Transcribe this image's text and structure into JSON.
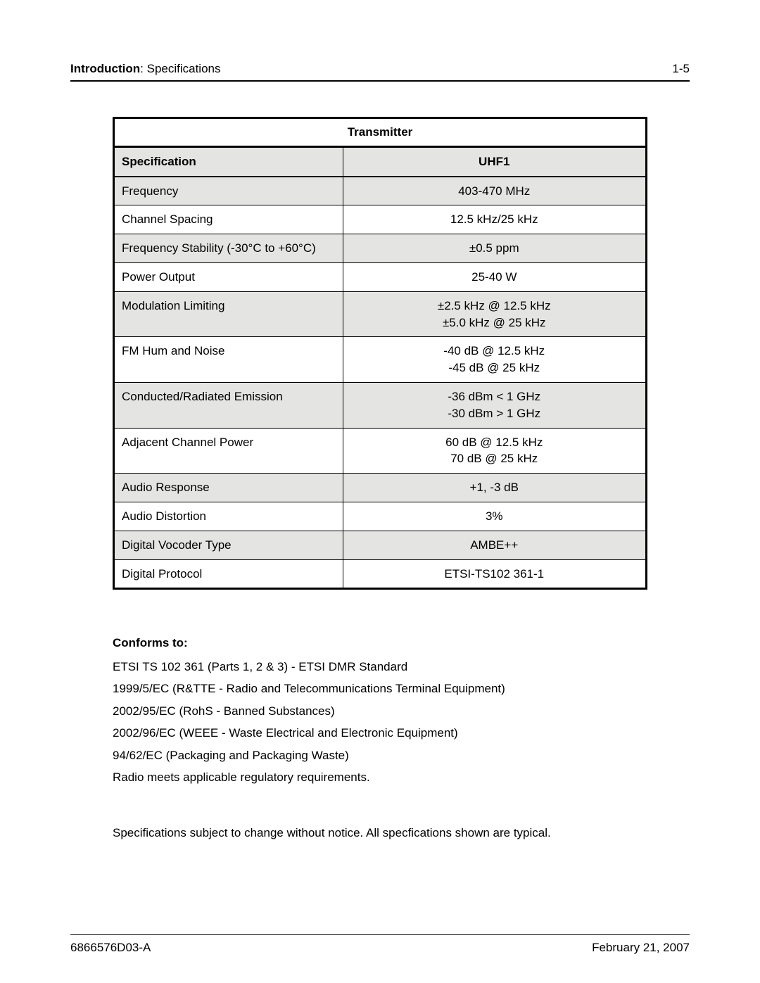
{
  "header": {
    "section_bold": "Introduction",
    "section_rest": ": Specifications",
    "page": "1-5"
  },
  "table": {
    "title": "Transmitter",
    "col_spec": "Specification",
    "col_val": "UHF1",
    "rows": [
      {
        "spec": "Frequency",
        "val": "403-470 MHz",
        "shade": true
      },
      {
        "spec": "Channel Spacing",
        "val": "12.5 kHz/25 kHz",
        "shade": false
      },
      {
        "spec": "Frequency Stability (-30°C to +60°C)",
        "val": "±0.5 ppm",
        "shade": true
      },
      {
        "spec": "Power Output",
        "val": "25-40 W",
        "shade": false
      },
      {
        "spec": "Modulation Limiting",
        "val": "±2.5 kHz @ 12.5 kHz\n±5.0 kHz @ 25 kHz",
        "shade": true
      },
      {
        "spec": "FM Hum and Noise",
        "val": "-40 dB @ 12.5 kHz\n-45 dB @ 25 kHz",
        "shade": false
      },
      {
        "spec": "Conducted/Radiated Emission",
        "val": "-36 dBm < 1 GHz\n-30 dBm > 1 GHz",
        "shade": true
      },
      {
        "spec": "Adjacent Channel Power",
        "val": "60 dB @ 12.5 kHz\n70 dB @ 25 kHz",
        "shade": false
      },
      {
        "spec": "Audio Response",
        "val": "+1, -3 dB",
        "shade": true
      },
      {
        "spec": "Audio Distortion",
        "val": "3%",
        "shade": false
      },
      {
        "spec": "Digital Vocoder Type",
        "val": "AMBE++",
        "shade": true
      },
      {
        "spec": "Digital Protocol",
        "val": "ETSI-TS102 361-1",
        "shade": false
      }
    ]
  },
  "conforms": {
    "heading": "Conforms to:",
    "lines": [
      "ETSI TS 102 361 (Parts 1, 2 & 3) - ETSI DMR Standard",
      "1999/5/EC (R&TTE - Radio and Telecommunications Terminal Equipment)",
      "2002/95/EC (RohS - Banned Substances)",
      "2002/96/EC (WEEE - Waste Electrical and Electronic Equipment)",
      "94/62/EC (Packaging and Packaging Waste)",
      "Radio meets applicable regulatory requirements."
    ]
  },
  "disclaimer": "Specifications subject to change without notice. All specfications shown are typical.",
  "footer": {
    "left": "6866576D03-A",
    "right": "February 21, 2007"
  }
}
